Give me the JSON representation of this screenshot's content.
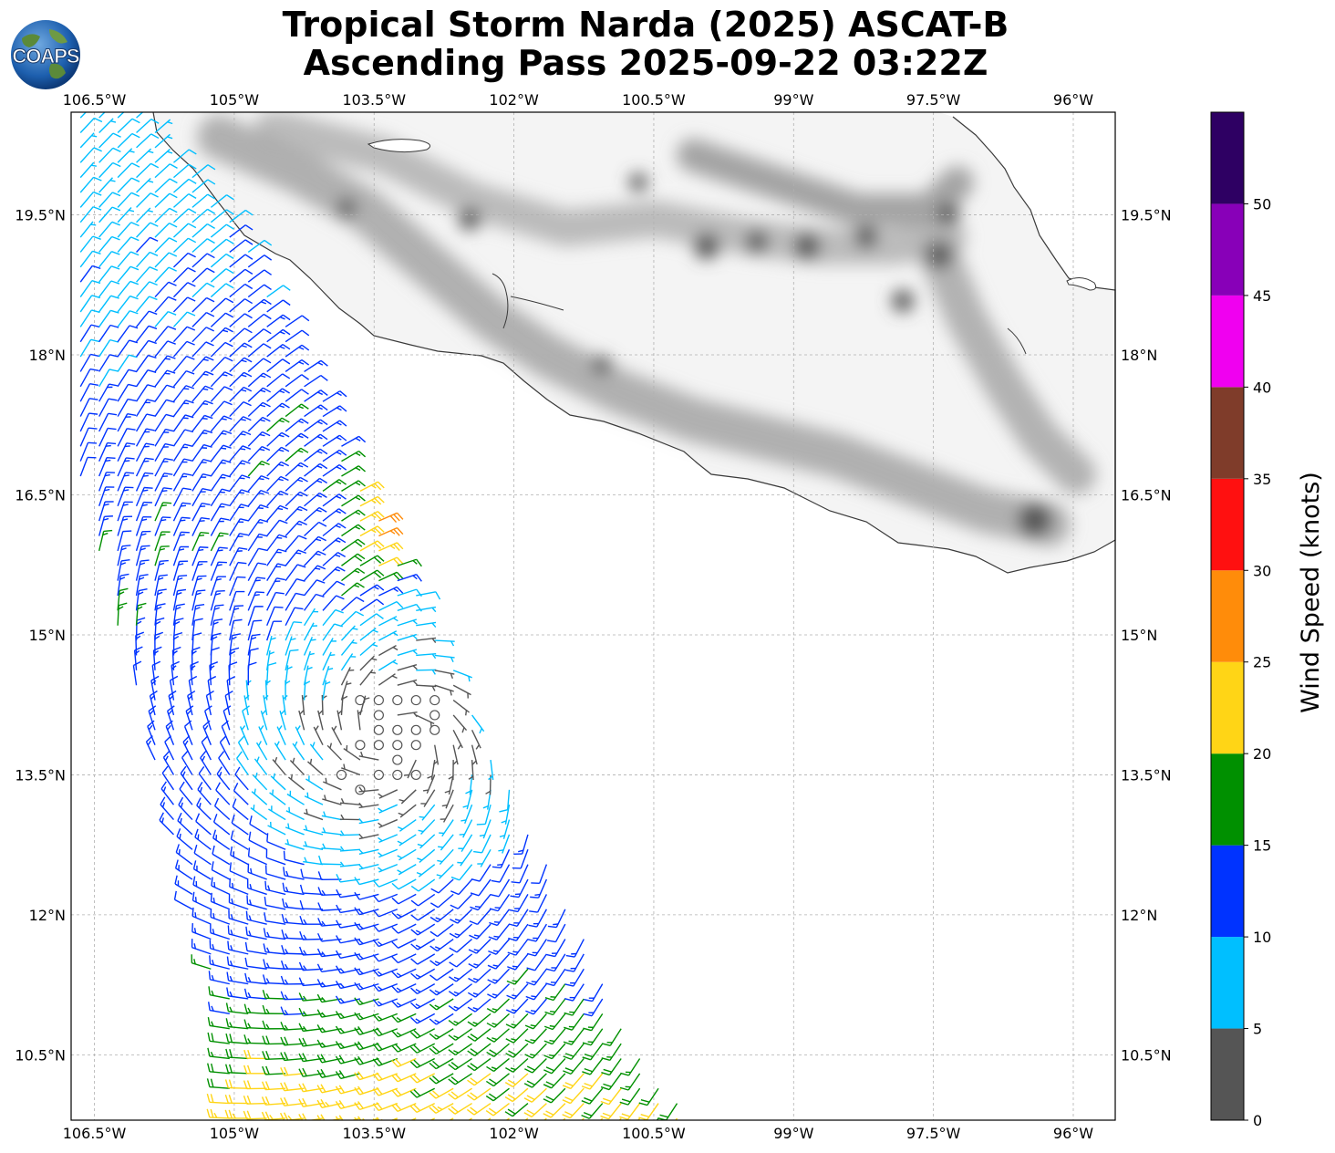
{
  "title": {
    "line1": "Tropical Storm Narda (2025) ASCAT-B",
    "line2": "Ascending Pass 2025-09-22 03:22Z"
  },
  "logo": {
    "text": "COAPS",
    "icon": "globe-logo"
  },
  "map": {
    "lon_range": [
      -106.75,
      -95.55
    ],
    "lat_range": [
      9.8,
      20.6
    ],
    "lon_ticks": [
      "106.5°W",
      "105°W",
      "103.5°W",
      "102°W",
      "100.5°W",
      "99°W",
      "97.5°W",
      "96°W"
    ],
    "lon_tick_values": [
      -106.5,
      -105,
      -103.5,
      -102,
      -100.5,
      -99,
      -97.5,
      -96
    ],
    "lat_ticks": [
      "19.5°N",
      "18°N",
      "16.5°N",
      "15°N",
      "13.5°N",
      "12°N",
      "10.5°N"
    ],
    "lat_tick_values": [
      19.5,
      18,
      16.5,
      15,
      13.5,
      12,
      10.5
    ],
    "grid": true,
    "land": "Mexico (grayscale terrain)",
    "storm_center": {
      "lon": -103.3,
      "lat": 13.9
    }
  },
  "colorbar": {
    "label": "Wind Speed (knots)",
    "ticks": [
      "0",
      "5",
      "10",
      "15",
      "20",
      "25",
      "30",
      "35",
      "40",
      "45",
      "50"
    ],
    "bins": [
      {
        "min": 0,
        "max": 5,
        "color": "#555555"
      },
      {
        "min": 5,
        "max": 10,
        "color": "#00bfff"
      },
      {
        "min": 10,
        "max": 15,
        "color": "#0033ff"
      },
      {
        "min": 15,
        "max": 20,
        "color": "#009000"
      },
      {
        "min": 20,
        "max": 25,
        "color": "#ffd516"
      },
      {
        "min": 25,
        "max": 30,
        "color": "#ff8c0a"
      },
      {
        "min": 30,
        "max": 35,
        "color": "#ff1010"
      },
      {
        "min": 35,
        "max": 40,
        "color": "#7f3c2a"
      },
      {
        "min": 40,
        "max": 45,
        "color": "#f000f0"
      },
      {
        "min": 45,
        "max": 50,
        "color": "#8800b8"
      },
      {
        "min": 50,
        "max": 55,
        "color": "#2e0063"
      }
    ]
  },
  "colors": {
    "coast": "#3a3a3a",
    "grid": "#b0b0b0",
    "calm": "#555555"
  }
}
